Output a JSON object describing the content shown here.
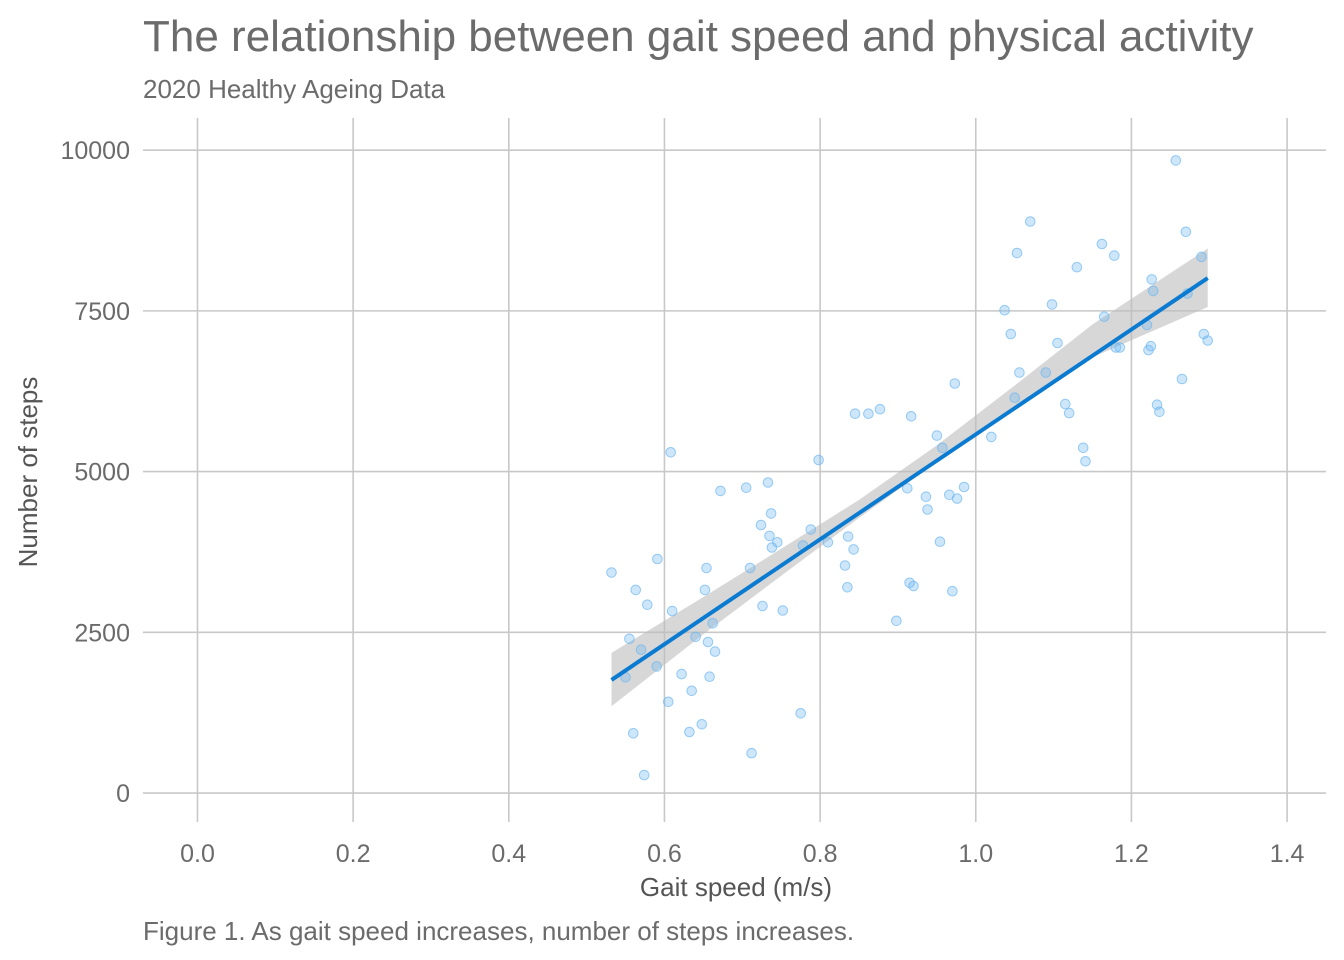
{
  "chart_data": {
    "type": "scatter",
    "title": "The relationship between gait speed and physical activity",
    "subtitle": "2020 Healthy Ageing Data",
    "xlabel": "Gait speed (m/s)",
    "ylabel": "Number of steps",
    "caption": "Figure 1. As gait speed increases, number of steps increases.",
    "xlim": [
      -0.07,
      1.45
    ],
    "ylim": [
      -450,
      10500
    ],
    "x_ticks": [
      0.0,
      0.2,
      0.4,
      0.6,
      0.8,
      1.0,
      1.2,
      1.4
    ],
    "x_tick_labels": [
      "0.0",
      "0.2",
      "0.4",
      "0.6",
      "0.8",
      "1.0",
      "1.2",
      "1.4"
    ],
    "y_ticks": [
      0,
      2500,
      5000,
      7500,
      10000
    ],
    "y_tick_labels": [
      "0",
      "2500",
      "5000",
      "7500",
      "10000"
    ],
    "grid": true,
    "colors": {
      "points": "#6fb7f0",
      "trend_line": "#0a7bd1",
      "confidence_band": "#bdbdbd",
      "grid": "#c8c8c8",
      "text": "#6b6b6b"
    },
    "points": [
      {
        "x": 0.532,
        "y": 3430
      },
      {
        "x": 0.55,
        "y": 1800
      },
      {
        "x": 0.555,
        "y": 2400
      },
      {
        "x": 0.56,
        "y": 930
      },
      {
        "x": 0.563,
        "y": 3160
      },
      {
        "x": 0.57,
        "y": 2230
      },
      {
        "x": 0.574,
        "y": 280
      },
      {
        "x": 0.578,
        "y": 2930
      },
      {
        "x": 0.59,
        "y": 1970
      },
      {
        "x": 0.591,
        "y": 3640
      },
      {
        "x": 0.605,
        "y": 1420
      },
      {
        "x": 0.608,
        "y": 5300
      },
      {
        "x": 0.61,
        "y": 2830
      },
      {
        "x": 0.622,
        "y": 1850
      },
      {
        "x": 0.632,
        "y": 950
      },
      {
        "x": 0.635,
        "y": 1590
      },
      {
        "x": 0.64,
        "y": 2430
      },
      {
        "x": 0.648,
        "y": 1070
      },
      {
        "x": 0.652,
        "y": 3160
      },
      {
        "x": 0.654,
        "y": 3500
      },
      {
        "x": 0.656,
        "y": 2350
      },
      {
        "x": 0.658,
        "y": 1810
      },
      {
        "x": 0.662,
        "y": 2640
      },
      {
        "x": 0.665,
        "y": 2200
      },
      {
        "x": 0.672,
        "y": 4700
      },
      {
        "x": 0.705,
        "y": 4750
      },
      {
        "x": 0.71,
        "y": 3500
      },
      {
        "x": 0.712,
        "y": 620
      },
      {
        "x": 0.724,
        "y": 4170
      },
      {
        "x": 0.726,
        "y": 2910
      },
      {
        "x": 0.733,
        "y": 4830
      },
      {
        "x": 0.735,
        "y": 4000
      },
      {
        "x": 0.737,
        "y": 4350
      },
      {
        "x": 0.738,
        "y": 3820
      },
      {
        "x": 0.745,
        "y": 3900
      },
      {
        "x": 0.752,
        "y": 2840
      },
      {
        "x": 0.775,
        "y": 1240
      },
      {
        "x": 0.778,
        "y": 3850
      },
      {
        "x": 0.788,
        "y": 4100
      },
      {
        "x": 0.798,
        "y": 5180
      },
      {
        "x": 0.81,
        "y": 3900
      },
      {
        "x": 0.832,
        "y": 3540
      },
      {
        "x": 0.835,
        "y": 3200
      },
      {
        "x": 0.836,
        "y": 3990
      },
      {
        "x": 0.843,
        "y": 3790
      },
      {
        "x": 0.845,
        "y": 5900
      },
      {
        "x": 0.862,
        "y": 5900
      },
      {
        "x": 0.877,
        "y": 5970
      },
      {
        "x": 0.898,
        "y": 2680
      },
      {
        "x": 0.912,
        "y": 4740
      },
      {
        "x": 0.915,
        "y": 3270
      },
      {
        "x": 0.917,
        "y": 5860
      },
      {
        "x": 0.92,
        "y": 3220
      },
      {
        "x": 0.936,
        "y": 4610
      },
      {
        "x": 0.938,
        "y": 4410
      },
      {
        "x": 0.95,
        "y": 5560
      },
      {
        "x": 0.954,
        "y": 3910
      },
      {
        "x": 0.957,
        "y": 5370
      },
      {
        "x": 0.966,
        "y": 4640
      },
      {
        "x": 0.97,
        "y": 3140
      },
      {
        "x": 0.973,
        "y": 6370
      },
      {
        "x": 0.976,
        "y": 4580
      },
      {
        "x": 0.985,
        "y": 4760
      },
      {
        "x": 1.02,
        "y": 5540
      },
      {
        "x": 1.037,
        "y": 7510
      },
      {
        "x": 1.045,
        "y": 7140
      },
      {
        "x": 1.05,
        "y": 6150
      },
      {
        "x": 1.053,
        "y": 8400
      },
      {
        "x": 1.056,
        "y": 6540
      },
      {
        "x": 1.07,
        "y": 8890
      },
      {
        "x": 1.09,
        "y": 6540
      },
      {
        "x": 1.098,
        "y": 7600
      },
      {
        "x": 1.105,
        "y": 7000
      },
      {
        "x": 1.115,
        "y": 6050
      },
      {
        "x": 1.12,
        "y": 5910
      },
      {
        "x": 1.13,
        "y": 8180
      },
      {
        "x": 1.138,
        "y": 5370
      },
      {
        "x": 1.141,
        "y": 5160
      },
      {
        "x": 1.162,
        "y": 8540
      },
      {
        "x": 1.165,
        "y": 7410
      },
      {
        "x": 1.178,
        "y": 8360
      },
      {
        "x": 1.18,
        "y": 6930
      },
      {
        "x": 1.185,
        "y": 6930
      },
      {
        "x": 1.22,
        "y": 7280
      },
      {
        "x": 1.222,
        "y": 6890
      },
      {
        "x": 1.225,
        "y": 6950
      },
      {
        "x": 1.226,
        "y": 7990
      },
      {
        "x": 1.228,
        "y": 7810
      },
      {
        "x": 1.233,
        "y": 6040
      },
      {
        "x": 1.236,
        "y": 5930
      },
      {
        "x": 1.257,
        "y": 9840
      },
      {
        "x": 1.265,
        "y": 6440
      },
      {
        "x": 1.27,
        "y": 8730
      },
      {
        "x": 1.272,
        "y": 7770
      },
      {
        "x": 1.29,
        "y": 8340
      },
      {
        "x": 1.293,
        "y": 7140
      },
      {
        "x": 1.298,
        "y": 7040
      }
    ],
    "trend": {
      "x": [
        0.532,
        1.298
      ],
      "y": [
        1760,
        8010
      ]
    },
    "confidence_band": {
      "x": [
        0.532,
        0.65,
        0.75,
        0.85,
        0.95,
        1.05,
        1.15,
        1.298
      ],
      "lower": [
        1350,
        2470,
        3380,
        4280,
        5150,
        5980,
        6780,
        7560
      ],
      "upper": [
        2180,
        3050,
        3800,
        4560,
        5410,
        6340,
        7290,
        8470
      ]
    }
  }
}
